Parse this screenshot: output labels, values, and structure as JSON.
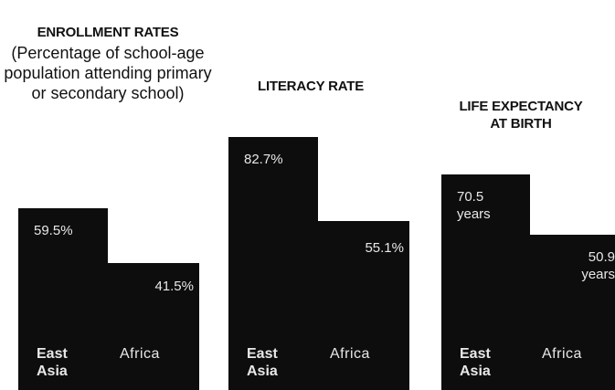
{
  "chart_data": [
    {
      "type": "bar",
      "title": "ENROLLMENT RATES",
      "subtitle": "(Percentage of school-age population attending primary or secondary school)",
      "categories": [
        "East Asia",
        "Africa"
      ],
      "values": [
        59.5,
        41.5
      ],
      "value_labels": [
        "59.5%",
        "41.5%"
      ],
      "bar_color": "#0d0d0d"
    },
    {
      "type": "bar",
      "title": "LITERACY RATE",
      "categories": [
        "East Asia",
        "Africa"
      ],
      "values": [
        82.7,
        55.1
      ],
      "value_labels": [
        "82.7%",
        "55.1%"
      ],
      "bar_color": "#0d0d0d"
    },
    {
      "type": "bar",
      "title": "LIFE EXPECTANCY AT BIRTH",
      "categories": [
        "East Asia",
        "Africa"
      ],
      "values": [
        70.5,
        50.9
      ],
      "value_labels": [
        "70.5 years",
        "50.9 years"
      ],
      "bar_color": "#0d0d0d"
    }
  ]
}
